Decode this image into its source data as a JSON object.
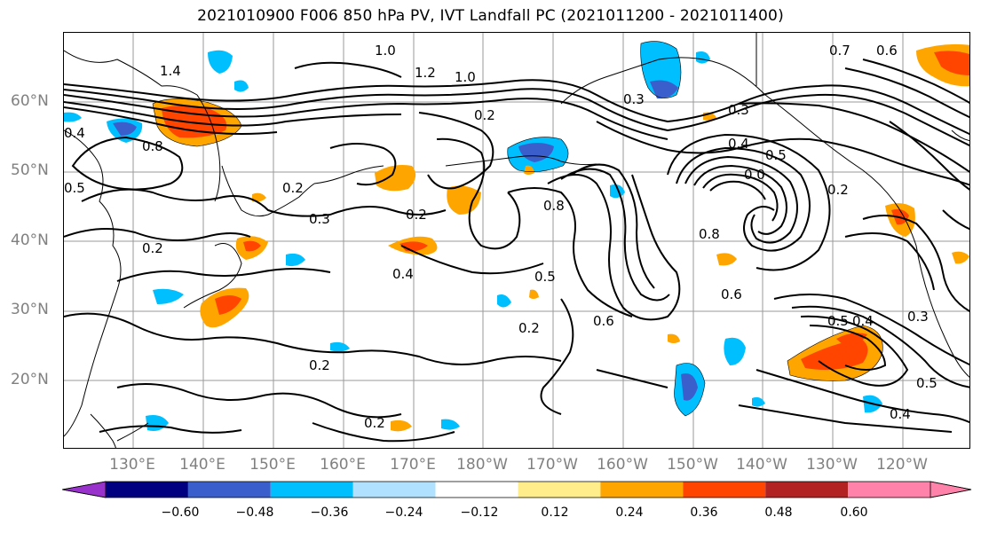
{
  "title": "2021010900 F006 850 hPa PV, IVT Landfall PC (2021011200 - 2021011400)",
  "lat_labels": [
    "60°N",
    "50°N",
    "40°N",
    "30°N",
    "20°N"
  ],
  "lon_labels": [
    "130°E",
    "140°E",
    "150°E",
    "160°E",
    "170°E",
    "180°W",
    "170°W",
    "160°W",
    "150°W",
    "140°W",
    "130°W",
    "120°W"
  ],
  "contour_labels": [
    "1.0",
    "1.4",
    "1.2",
    "1.0",
    "0.4",
    "0.8",
    "0.5",
    "0.2",
    "0.3",
    "0.2",
    "0.2",
    "0.4",
    "0.2",
    "0.5",
    "0.6",
    "0.2",
    "0.8",
    "0.6",
    "0.2",
    "0.2",
    "0.3",
    "0.4",
    "0.5",
    "0.0",
    "0.8",
    "0.2",
    "0.3",
    "0.5",
    "0.4",
    "0.3",
    "0.5",
    "0.4",
    "0.7",
    "0.6"
  ],
  "colorbar": {
    "ticks": [
      "−0.60",
      "−0.48",
      "−0.36",
      "−0.24",
      "−0.12",
      "0.12",
      "0.24",
      "0.36",
      "0.48",
      "0.60"
    ],
    "colors": [
      "#9932cc",
      "#000080",
      "#3a5fcd",
      "#00bfff",
      "#b0e2ff",
      "#ffffff",
      "#ffec8b",
      "#ffa500",
      "#ff4500",
      "#b22222",
      "#ff82ab",
      "#ff82ab"
    ]
  }
}
